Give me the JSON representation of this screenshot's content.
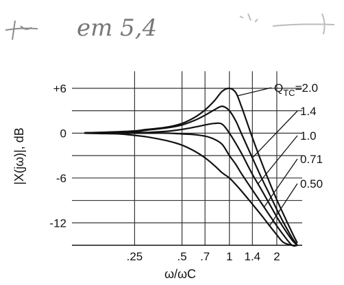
{
  "handwriting": "em 5,4",
  "chart_data": {
    "type": "line",
    "title": "",
    "xlabel": "ω/ωC",
    "ylabel": "|X(jω)|, dB",
    "x_scale": "log",
    "xlim": [
      0.1,
      2.9
    ],
    "ylim": [
      -15,
      7
    ],
    "x_ticks": [
      {
        "value": 0.25,
        "label": ".25"
      },
      {
        "value": 0.5,
        "label": ".5"
      },
      {
        "value": 0.7,
        "label": ".7"
      },
      {
        "value": 1,
        "label": "1"
      },
      {
        "value": 1.4,
        "label": "1.4"
      },
      {
        "value": 2,
        "label": "2"
      }
    ],
    "y_ticks": [
      {
        "value": 6,
        "label": "+6"
      },
      {
        "value": 0,
        "label": "0"
      },
      {
        "value": -6,
        "label": "-6"
      },
      {
        "value": -12,
        "label": "-12"
      }
    ],
    "grid": true,
    "legend_position": "right",
    "x": [
      0.12,
      0.15,
      0.2,
      0.25,
      0.3,
      0.4,
      0.5,
      0.6,
      0.7,
      0.8,
      0.9,
      1.0,
      1.1,
      1.2,
      1.4,
      1.6,
      1.8,
      2.0,
      2.2,
      2.5,
      2.7
    ],
    "series": [
      {
        "name": "QTC=2.0",
        "values": [
          0.05,
          0.1,
          0.2,
          0.3,
          0.5,
          0.8,
          1.3,
          2.1,
          3.1,
          4.3,
          5.6,
          6.0,
          5.4,
          3.4,
          -0.6,
          -3.9,
          -6.6,
          -8.9,
          -10.8,
          -13.3,
          -14.7
        ]
      },
      {
        "name": "1.4",
        "values": [
          0.05,
          0.1,
          0.15,
          0.2,
          0.4,
          0.7,
          1.1,
          1.7,
          2.4,
          3.1,
          3.6,
          3.0,
          1.6,
          -0.2,
          -3.3,
          -6.0,
          -8.2,
          -10.2,
          -11.9,
          -14.0,
          -15.2
        ]
      },
      {
        "name": "1.0",
        "values": [
          0.0,
          0.0,
          0.0,
          0.05,
          0.1,
          0.25,
          0.5,
          0.8,
          1.1,
          1.3,
          1.2,
          0.0,
          -1.4,
          -2.8,
          -5.5,
          -7.6,
          -9.5,
          -11.2,
          -12.6,
          -14.3,
          -15.4
        ]
      },
      {
        "name": "0.71",
        "values": [
          0.0,
          0.0,
          0.0,
          0.0,
          0.0,
          0.0,
          -0.1,
          -0.2,
          -0.4,
          -0.8,
          -1.5,
          -3.0,
          -4.2,
          -5.5,
          -7.6,
          -9.4,
          -11.0,
          -12.4,
          -13.6,
          -15.1,
          -16.0
        ]
      },
      {
        "name": "0.50",
        "values": [
          0.0,
          -0.05,
          -0.1,
          -0.3,
          -0.5,
          -1.0,
          -1.6,
          -2.4,
          -3.3,
          -4.3,
          -5.3,
          -6.0,
          -6.9,
          -7.8,
          -9.5,
          -11.0,
          -12.4,
          -13.6,
          -14.6,
          -16.0,
          -16.8
        ]
      }
    ]
  }
}
